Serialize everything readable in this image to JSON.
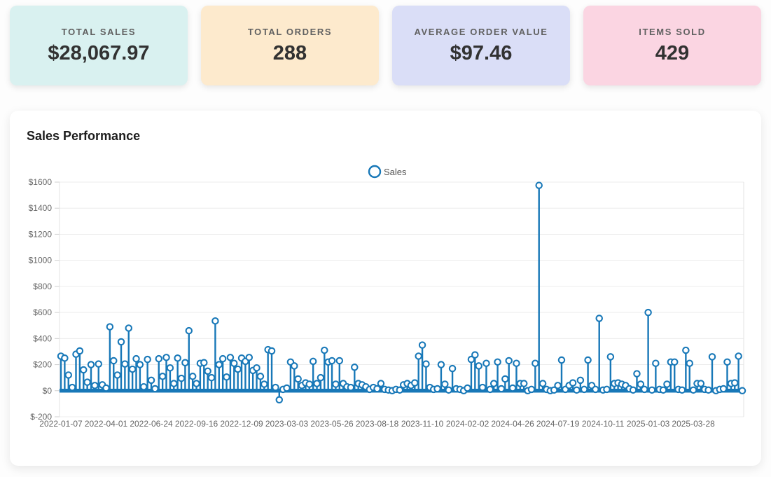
{
  "kpi_cards": [
    {
      "label": "TOTAL SALES",
      "value": "$28,067.97",
      "bg": "#d9f1f0"
    },
    {
      "label": "TOTAL ORDERS",
      "value": "288",
      "bg": "#fdeacd"
    },
    {
      "label": "AVERAGE ORDER VALUE",
      "value": "$97.46",
      "bg": "#dadef7"
    },
    {
      "label": "ITEMS SOLD",
      "value": "429",
      "bg": "#fbd5e2"
    }
  ],
  "chart": {
    "title": "Sales Performance"
  },
  "chart_data": {
    "type": "scatter",
    "variant": "stem-lollipop",
    "title": "Sales Performance",
    "legend": {
      "label": "Sales",
      "position": "top-center"
    },
    "accent_color": "#1878b8",
    "grid": true,
    "ylim": [
      -200,
      1600
    ],
    "y_tick_labels": [
      "$1600",
      "$1400",
      "$1200",
      "$1000",
      "$800",
      "$600",
      "$400",
      "$200",
      "$0",
      "$-200"
    ],
    "x_start_date": "2022-01-07",
    "x_interval_days": 7,
    "x_tick_every_n_points": 12,
    "x_tick_labels": [
      "2022-01-07",
      "2022-04-01",
      "2022-06-24",
      "2022-09-16",
      "2022-12-09",
      "2023-03-03",
      "2023-05-26",
      "2023-08-18",
      "2023-11-10",
      "2024-02-02",
      "2024-04-26",
      "2024-07-19",
      "2024-10-11",
      "2025-01-03",
      "2025-03-28"
    ],
    "values": [
      265,
      250,
      120,
      25,
      280,
      305,
      160,
      65,
      200,
      40,
      205,
      45,
      20,
      490,
      230,
      120,
      375,
      205,
      480,
      165,
      245,
      200,
      30,
      240,
      80,
      15,
      245,
      110,
      255,
      175,
      55,
      250,
      95,
      215,
      460,
      110,
      55,
      210,
      215,
      150,
      100,
      535,
      200,
      245,
      105,
      255,
      210,
      165,
      250,
      225,
      255,
      155,
      175,
      110,
      50,
      315,
      305,
      25,
      -70,
      10,
      20,
      220,
      190,
      90,
      40,
      60,
      50,
      225,
      55,
      100,
      310,
      220,
      230,
      50,
      230,
      55,
      30,
      25,
      180,
      55,
      45,
      30,
      10,
      25,
      15,
      55,
      10,
      5,
      0,
      10,
      5,
      45,
      55,
      40,
      60,
      265,
      350,
      205,
      25,
      10,
      15,
      200,
      50,
      5,
      170,
      15,
      10,
      0,
      20,
      240,
      275,
      190,
      25,
      210,
      10,
      55,
      220,
      15,
      90,
      230,
      20,
      210,
      55,
      55,
      0,
      10,
      210,
      1575,
      55,
      10,
      0,
      5,
      40,
      235,
      10,
      40,
      60,
      5,
      80,
      10,
      235,
      40,
      10,
      555,
      5,
      10,
      260,
      55,
      60,
      50,
      40,
      15,
      5,
      130,
      50,
      10,
      600,
      5,
      210,
      10,
      5,
      50,
      220,
      220,
      10,
      5,
      310,
      210,
      5,
      55,
      55,
      10,
      5,
      260,
      0,
      10,
      15,
      220,
      55,
      60,
      265,
      0
    ]
  }
}
